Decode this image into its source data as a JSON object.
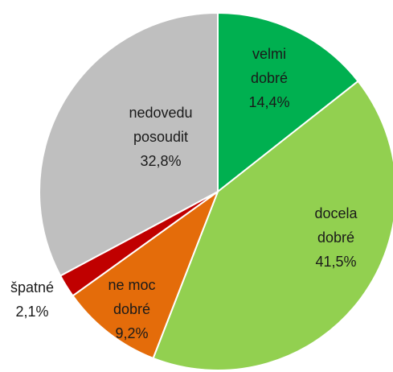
{
  "chart_data": {
    "type": "pie",
    "categories": [
      "velmi dobré",
      "docela dobré",
      "ne moc dobré",
      "špatné",
      "nedovedu posoudit"
    ],
    "values": [
      14.4,
      41.5,
      9.2,
      2.1,
      32.8
    ],
    "value_labels": [
      "14,4%",
      "41,5%",
      "9,2%",
      "2,1%",
      "32,8%"
    ],
    "colors": [
      "#00b050",
      "#92d050",
      "#e46c0a",
      "#c00000",
      "#bfbfbf"
    ]
  }
}
